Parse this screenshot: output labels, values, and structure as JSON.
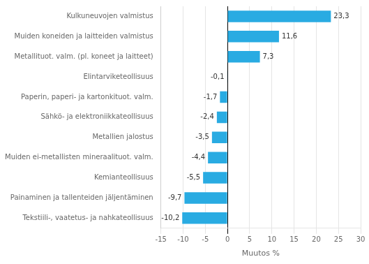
{
  "chart_data": {
    "type": "bar",
    "orientation": "horizontal",
    "categories": [
      "Tekstiili-, vaatetus- ja nahkateollisuus",
      "Painaminen ja tallenteiden jäljentäminen",
      "Kemianteollisuus",
      "Muiden ei-metallisten mineraalituot. valm.",
      "Metallien jalostus",
      "Sähkö- ja elektroniikkateollisuus",
      "Paperin, paperi- ja kartonkituot. valm.",
      "Elintarviketeollisuus",
      "Metallituot. valm. (pl. koneet ja laitteet)",
      "Muiden koneiden ja laitteiden valmistus",
      "Kulkuneuvojen valmistus"
    ],
    "values": [
      -10.2,
      -9.7,
      -5.5,
      -4.4,
      -3.5,
      -2.4,
      -1.7,
      -0.1,
      7.3,
      11.6,
      23.3
    ],
    "value_labels": [
      "-10,2",
      "-9,7",
      "-5,5",
      "-4,4",
      "-3,5",
      "-2,4",
      "-1,7",
      "-0,1",
      "7,3",
      "11,6",
      "23,3"
    ],
    "color": "#29abe2",
    "xlabel": "Muutos %",
    "xlim": [
      -15,
      30
    ],
    "xticks": [
      -15,
      -10,
      -5,
      0,
      5,
      10,
      15,
      20,
      25,
      30
    ],
    "grid": true,
    "data_labels": true
  }
}
